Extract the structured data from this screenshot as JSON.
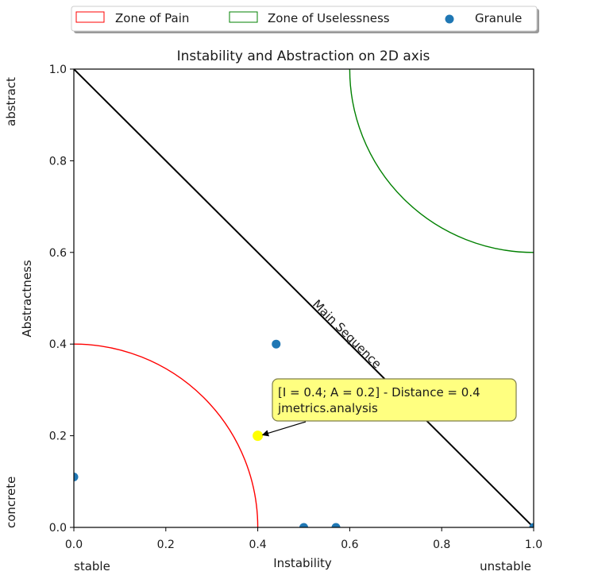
{
  "chart_data": {
    "type": "scatter",
    "title": "Instability and Abstraction on 2D axis",
    "xlabel": "Instability",
    "ylabel": "Abstractness",
    "xlim": [
      0,
      1
    ],
    "ylim": [
      0,
      1
    ],
    "xticks": [
      "0.0",
      "0.2",
      "0.4",
      "0.6",
      "0.8",
      "1.0"
    ],
    "yticks": [
      "0.0",
      "0.2",
      "0.4",
      "0.6",
      "0.8",
      "1.0"
    ],
    "x_extremes": {
      "low": "stable",
      "high": "unstable"
    },
    "y_extremes": {
      "low": "concrete",
      "high": "abstract"
    },
    "legend": {
      "placement": "top",
      "entries": [
        {
          "label": "Zone of Pain",
          "kind": "patch",
          "color": "#ff0000"
        },
        {
          "label": "Zone of Uselessness",
          "kind": "patch",
          "color": "#008000"
        },
        {
          "label": "Granule",
          "kind": "marker",
          "color": "#1f77b4"
        }
      ]
    },
    "zones": [
      {
        "name": "Zone of Pain",
        "center": [
          0,
          0
        ],
        "radius": 0.4,
        "color": "#ff0000"
      },
      {
        "name": "Zone of Uselessness",
        "center": [
          1,
          1
        ],
        "radius": 0.4,
        "color": "#008000"
      }
    ],
    "main_sequence": {
      "label": "Main Sequence",
      "from": [
        0,
        1
      ],
      "to": [
        1,
        0
      ],
      "color": "#000000"
    },
    "series": [
      {
        "name": "Granule",
        "color": "#1f77b4",
        "points": [
          {
            "x": 0.0,
            "y": 0.11
          },
          {
            "x": 0.44,
            "y": 0.4
          },
          {
            "x": 0.5,
            "y": 0.0
          },
          {
            "x": 0.57,
            "y": 0.0
          },
          {
            "x": 1.0,
            "y": 0.0
          }
        ]
      }
    ],
    "highlighted_point": {
      "x": 0.4,
      "y": 0.2,
      "color": "#ffff00",
      "annotation_lines": [
        "[I = 0.4; A = 0.2] - Distance = 0.4",
        "jmetrics.analysis"
      ]
    }
  }
}
